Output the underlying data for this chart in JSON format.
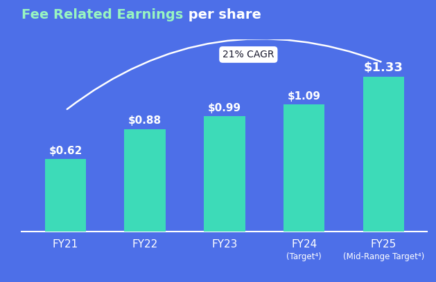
{
  "title_bold": "Fee Related Earnings",
  "title_regular": " per share",
  "categories": [
    "FY21",
    "FY22",
    "FY23",
    "FY24",
    "FY25"
  ],
  "sublabels": [
    "",
    "",
    "",
    "(Target⁴)",
    "(Mid-Range Target⁴)"
  ],
  "values": [
    0.62,
    0.88,
    0.99,
    1.09,
    1.33
  ],
  "value_labels": [
    "$0.62",
    "$0.88",
    "$0.99",
    "$1.09",
    "$1.33"
  ],
  "bar_color": "#3DDBB8",
  "background_color": "#4D6FE8",
  "text_color": "#FFFFFF",
  "title_color_bold": "#98F5C0",
  "title_color_regular": "#FFFFFF",
  "cagr_label": "21% CAGR",
  "cagr_box_facecolor": "#FFFFFF",
  "cagr_text_color": "#1A1A2E",
  "ylim": [
    0,
    1.65
  ],
  "bar_width": 0.52
}
